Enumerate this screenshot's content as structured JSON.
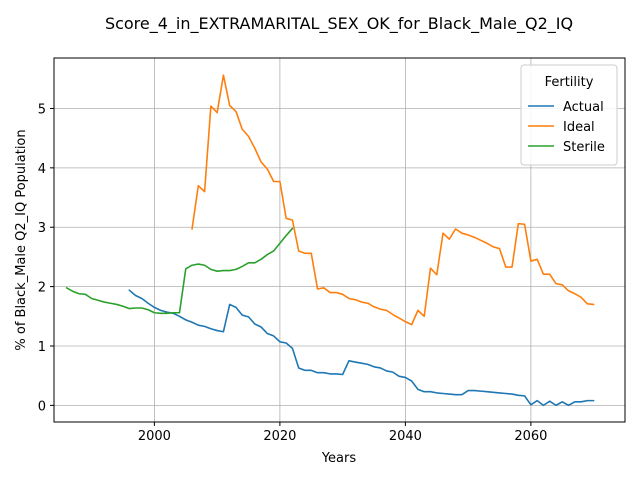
{
  "chart_data": {
    "type": "line",
    "title": "Score_4_in_EXTRAMARITAL_SEX_OK_for_Black_Male_Q2_IQ",
    "xlabel": "Years",
    "ylabel": "% of Black_Male Q2_IQ Population",
    "xlim": [
      1984,
      2075
    ],
    "ylim": [
      -0.28,
      5.85
    ],
    "xticks": [
      2000,
      2020,
      2040,
      2060
    ],
    "yticks": [
      0,
      1,
      2,
      3,
      4,
      5
    ],
    "grid": true,
    "legend": {
      "title": "Fertility",
      "placement": "top-right"
    },
    "series": [
      {
        "name": "Actual",
        "color": "#1f77b4",
        "x": [
          1996,
          1997,
          1998,
          1999,
          2000,
          2001,
          2002,
          2003,
          2004,
          2005,
          2006,
          2007,
          2008,
          2009,
          2010,
          2011,
          2012,
          2013,
          2014,
          2015,
          2016,
          2017,
          2018,
          2019,
          2020,
          2021,
          2022,
          2023,
          2024,
          2025,
          2026,
          2027,
          2028,
          2029,
          2030,
          2031,
          2032,
          2033,
          2034,
          2035,
          2036,
          2037,
          2038,
          2039,
          2040,
          2041,
          2042,
          2043,
          2044,
          2045,
          2046,
          2047,
          2048,
          2049,
          2050,
          2051,
          2052,
          2053,
          2054,
          2055,
          2056,
          2057,
          2058,
          2059,
          2060,
          2061,
          2062,
          2063,
          2064,
          2065,
          2066,
          2067,
          2068,
          2069,
          2070
        ],
        "values": [
          1.94,
          1.85,
          1.8,
          1.72,
          1.65,
          1.6,
          1.57,
          1.55,
          1.5,
          1.44,
          1.4,
          1.35,
          1.33,
          1.29,
          1.26,
          1.24,
          1.7,
          1.65,
          1.52,
          1.49,
          1.37,
          1.32,
          1.21,
          1.17,
          1.07,
          1.05,
          0.96,
          0.63,
          0.59,
          0.59,
          0.55,
          0.55,
          0.53,
          0.53,
          0.52,
          0.75,
          0.73,
          0.71,
          0.69,
          0.65,
          0.63,
          0.58,
          0.56,
          0.49,
          0.47,
          0.41,
          0.27,
          0.23,
          0.23,
          0.21,
          0.2,
          0.19,
          0.18,
          0.18,
          0.25,
          0.25,
          0.24,
          0.23,
          0.22,
          0.21,
          0.2,
          0.19,
          0.17,
          0.16,
          0.01,
          0.08,
          0.0,
          0.07,
          0.0,
          0.06,
          0.0,
          0.06,
          0.06,
          0.08,
          0.08
        ]
      },
      {
        "name": "Ideal",
        "color": "#ff7f0e",
        "x": [
          2006,
          2007,
          2008,
          2009,
          2010,
          2011,
          2012,
          2013,
          2014,
          2015,
          2016,
          2017,
          2018,
          2019,
          2020,
          2021,
          2022,
          2023,
          2024,
          2025,
          2026,
          2027,
          2028,
          2029,
          2030,
          2031,
          2032,
          2033,
          2034,
          2035,
          2036,
          2037,
          2038,
          2039,
          2040,
          2041,
          2042,
          2043,
          2044,
          2045,
          2046,
          2047,
          2048,
          2049,
          2050,
          2051,
          2052,
          2053,
          2054,
          2055,
          2056,
          2057,
          2058,
          2059,
          2060,
          2061,
          2062,
          2063,
          2064,
          2065,
          2066,
          2067,
          2068,
          2069,
          2070
        ],
        "values": [
          2.97,
          3.7,
          3.6,
          5.04,
          4.93,
          5.56,
          5.05,
          4.95,
          4.65,
          4.53,
          4.33,
          4.1,
          3.98,
          3.77,
          3.77,
          3.15,
          3.12,
          2.6,
          2.56,
          2.56,
          1.96,
          1.98,
          1.9,
          1.9,
          1.87,
          1.8,
          1.78,
          1.74,
          1.72,
          1.66,
          1.62,
          1.6,
          1.53,
          1.47,
          1.41,
          1.36,
          1.6,
          1.5,
          2.31,
          2.2,
          2.9,
          2.8,
          2.97,
          2.9,
          2.87,
          2.83,
          2.78,
          2.73,
          2.67,
          2.64,
          2.33,
          2.33,
          3.06,
          3.05,
          2.43,
          2.46,
          2.21,
          2.21,
          2.05,
          2.03,
          1.93,
          1.88,
          1.82,
          1.71,
          1.7
        ]
      },
      {
        "name": "Sterile",
        "color": "#2ca02c",
        "x": [
          1986,
          1987,
          1988,
          1989,
          1990,
          1991,
          1992,
          1993,
          1994,
          1995,
          1996,
          1997,
          1998,
          1999,
          2000,
          2001,
          2002,
          2003,
          2004,
          2005,
          2006,
          2007,
          2008,
          2009,
          2010,
          2011,
          2012,
          2013,
          2014,
          2015,
          2016,
          2017,
          2018,
          2019,
          2020,
          2021,
          2022
        ],
        "values": [
          1.98,
          1.92,
          1.88,
          1.87,
          1.8,
          1.77,
          1.74,
          1.72,
          1.7,
          1.67,
          1.63,
          1.64,
          1.64,
          1.61,
          1.56,
          1.55,
          1.55,
          1.56,
          1.56,
          2.3,
          2.36,
          2.38,
          2.36,
          2.29,
          2.26,
          2.27,
          2.27,
          2.29,
          2.34,
          2.4,
          2.4,
          2.46,
          2.54,
          2.6,
          2.73,
          2.86,
          2.98
        ]
      }
    ]
  }
}
